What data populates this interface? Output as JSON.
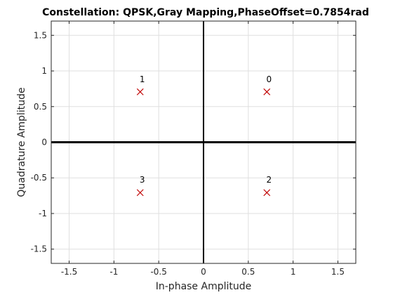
{
  "chart_data": {
    "type": "scatter",
    "title": "Constellation: QPSK,Gray Mapping,PhaseOffset=0.7854rad",
    "xlabel": "In-phase Amplitude",
    "ylabel": "Quadrature Amplitude",
    "xlim": [
      -1.7,
      1.7
    ],
    "ylim": [
      -1.7,
      1.7
    ],
    "x_ticks": [
      -1.5,
      -1,
      -0.5,
      0,
      0.5,
      1,
      1.5
    ],
    "x_tick_labels": [
      "-1.5",
      "-1",
      "-0.5",
      "0",
      "0.5",
      "1",
      "1.5"
    ],
    "y_ticks": [
      1.5,
      1,
      0.5,
      0,
      -0.5,
      -1,
      -1.5
    ],
    "y_tick_labels": [
      "1.5",
      "1",
      "0.5",
      "0",
      "-0.5",
      "-1",
      "-1.5"
    ],
    "grid": true,
    "marker_color": "#c00000",
    "points": [
      {
        "x": 0.7071,
        "y": 0.7071,
        "label": "0"
      },
      {
        "x": -0.7071,
        "y": 0.7071,
        "label": "1"
      },
      {
        "x": 0.7071,
        "y": -0.7071,
        "label": "2"
      },
      {
        "x": -0.7071,
        "y": -0.7071,
        "label": "3"
      }
    ]
  }
}
